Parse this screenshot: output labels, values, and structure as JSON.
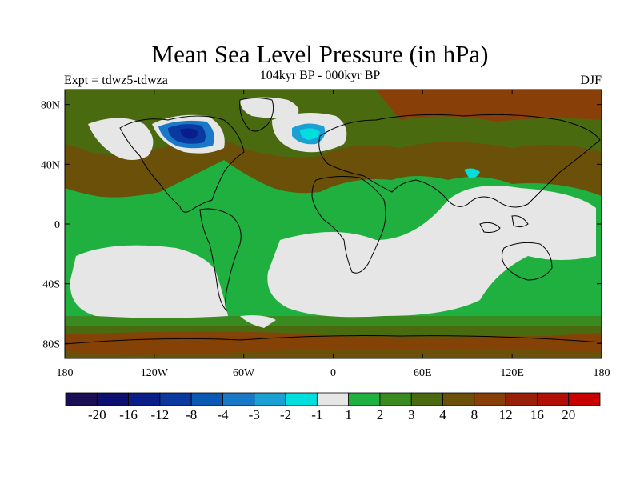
{
  "title": "Mean Sea Level Pressure (in hPa)",
  "subtitle": "104kyr BP - 000kyr BP",
  "left_label": "Expt = tdwz5-tdwza",
  "right_label": "DJF",
  "axes": {
    "lon_ticks": [
      {
        "label": "180",
        "lon": -180
      },
      {
        "label": "120W",
        "lon": -120
      },
      {
        "label": "60W",
        "lon": -60
      },
      {
        "label": "0",
        "lon": 0
      },
      {
        "label": "60E",
        "lon": 60
      },
      {
        "label": "120E",
        "lon": 120
      },
      {
        "label": "180",
        "lon": 180
      }
    ],
    "lat_ticks": [
      {
        "label": "80N",
        "lat": 80
      },
      {
        "label": "40N",
        "lat": 40
      },
      {
        "label": "0",
        "lat": 0
      },
      {
        "label": "40S",
        "lat": -40
      },
      {
        "label": "80S",
        "lat": -80
      }
    ],
    "lon_range": [
      -180,
      180
    ],
    "lat_range": [
      -90,
      90
    ]
  },
  "colorbar": {
    "labels": [
      "-20",
      "-16",
      "-12",
      "-8",
      "-4",
      "-3",
      "-2",
      "-1",
      "1",
      "2",
      "3",
      "4",
      "8",
      "12",
      "16",
      "20"
    ],
    "colors": [
      "#1a0d55",
      "#0a0f70",
      "#0a1e8a",
      "#0a3aa0",
      "#0a5ab4",
      "#1a78c8",
      "#1aa0d2",
      "#00dede",
      "#e6e6e6",
      "#20b040",
      "#3a8a22",
      "#4a6a10",
      "#6a5008",
      "#884008",
      "#982008",
      "#b01008",
      "#c80000"
    ]
  },
  "colors": {
    "land_outline": "#000000",
    "background": "#ffffff"
  }
}
